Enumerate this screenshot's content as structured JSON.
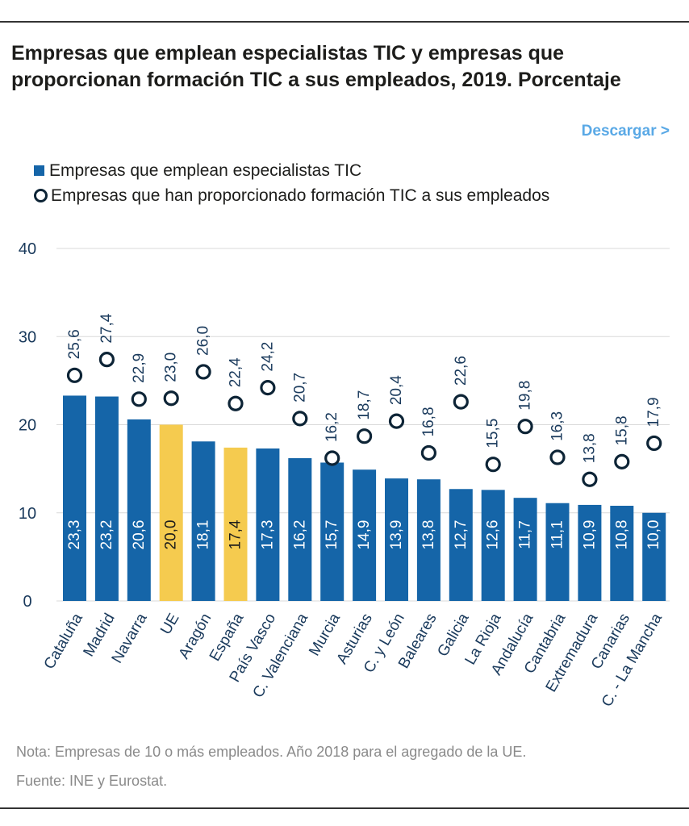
{
  "title": "Empresas que emplean especialistas TIC y empresas que proporcionan formación TIC a sus empleados, 2019. Porcentaje",
  "download_label": "Descargar >",
  "note": "Nota: Empresas de 10 o más empleados. Año 2018 para el agregado de la UE.",
  "source": "Fuente: INE y Eurostat.",
  "colors": {
    "bar": "#1565a8",
    "highlight": "#f5cb4f",
    "circle": "#0d2436",
    "axis": "#1a3a5c"
  },
  "chart_data": {
    "type": "bar",
    "ylim": [
      0,
      40
    ],
    "yticks": [
      "0",
      "10",
      "20",
      "30",
      "40"
    ],
    "grid": true,
    "legend_position": "top-left",
    "categories": [
      "Cataluña",
      "Madrid",
      "Navarra",
      "UE",
      "Aragón",
      "España",
      "País Vasco",
      "C. Valenciana",
      "Murcia",
      "Asturias",
      "C. y León",
      "Baleares",
      "Galicia",
      "La Rioja",
      "Andalucía",
      "Cantabria",
      "Extremadura",
      "Canarias",
      "C. - La Mancha"
    ],
    "highlighted": [
      "UE",
      "España"
    ],
    "series": [
      {
        "name": "Empresas que emplean especialistas TIC",
        "marker": "bar",
        "values": [
          23.3,
          23.2,
          20.6,
          20.0,
          18.1,
          17.4,
          17.3,
          16.2,
          15.7,
          14.9,
          13.9,
          13.8,
          12.7,
          12.6,
          11.7,
          11.1,
          10.9,
          10.8,
          10.0
        ],
        "labels": [
          "23,3",
          "23,2",
          "20,6",
          "20,0",
          "18,1",
          "17,4",
          "17,3",
          "16,2",
          "15,7",
          "14,9",
          "13,9",
          "13,8",
          "12,7",
          "12,6",
          "11,7",
          "11,1",
          "10,9",
          "10,8",
          "10,0"
        ]
      },
      {
        "name": "Empresas que han proporcionado formación TIC a sus empleados",
        "marker": "circle",
        "values": [
          25.6,
          27.4,
          22.9,
          23.0,
          26.0,
          22.4,
          24.2,
          20.7,
          16.2,
          18.7,
          20.4,
          16.8,
          22.6,
          15.5,
          19.8,
          16.3,
          13.8,
          15.8,
          17.9
        ],
        "labels": [
          "25,6",
          "27,4",
          "22,9",
          "23,0",
          "26,0",
          "22,4",
          "24,2",
          "20,7",
          "16,2",
          "18,7",
          "20,4",
          "16,8",
          "22,6",
          "15,5",
          "19,8",
          "16,3",
          "13,8",
          "15,8",
          "17,9"
        ]
      }
    ]
  }
}
